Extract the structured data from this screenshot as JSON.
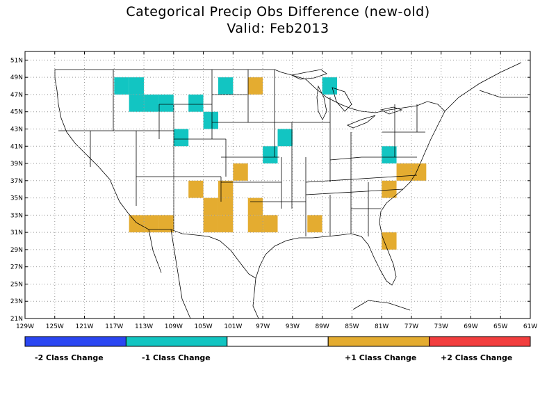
{
  "title": "Categorical Precip Obs Difference (new-old)",
  "subtitle": "Valid: Feb2013",
  "colors": {
    "minus2": "#2a46f2",
    "minus1": "#12c5c2",
    "zero": "#ffffff",
    "plus1": "#e4ac30",
    "plus2": "#f23e3e",
    "state_lines": "#000000",
    "grid": "#9a9a9a"
  },
  "lat_labels": [
    "21N",
    "23N",
    "25N",
    "27N",
    "29N",
    "31N",
    "33N",
    "35N",
    "37N",
    "39N",
    "41N",
    "43N",
    "45N",
    "47N",
    "49N",
    "51N"
  ],
  "lon_labels": [
    "129W",
    "125W",
    "121W",
    "117W",
    "113W",
    "109W",
    "105W",
    "101W",
    "97W",
    "93W",
    "89W",
    "85W",
    "81W",
    "77W",
    "73W",
    "69W",
    "65W",
    "61W"
  ],
  "legend": {
    "labels": [
      "-2 Class Change",
      "-1 Class Change",
      "+1 Class Change",
      "+2 Class Change"
    ]
  },
  "map_data": {
    "lon_range": [
      -129,
      -61
    ],
    "lat_range": [
      21,
      52
    ],
    "cell_deg": 2,
    "cells_minus1": [
      [
        -117,
        47
      ],
      [
        -115,
        47
      ],
      [
        -115,
        45
      ],
      [
        -113,
        45
      ],
      [
        -111,
        45
      ],
      [
        -107,
        45
      ],
      [
        -103,
        47
      ],
      [
        -105,
        43
      ],
      [
        -109,
        41
      ],
      [
        -95,
        41
      ],
      [
        -97,
        39
      ],
      [
        -81,
        39
      ],
      [
        -89,
        47
      ]
    ],
    "cells_plus1": [
      [
        -99,
        47
      ],
      [
        -101,
        37
      ],
      [
        -107,
        35
      ],
      [
        -103,
        35
      ],
      [
        -105,
        33
      ],
      [
        -103,
        33
      ],
      [
        -99,
        33
      ],
      [
        -99,
        31
      ],
      [
        -97,
        31
      ],
      [
        -115,
        31
      ],
      [
        -113,
        31
      ],
      [
        -111,
        31
      ],
      [
        -105,
        31
      ],
      [
        -103,
        31
      ],
      [
        -91,
        31
      ],
      [
        -81,
        35
      ],
      [
        -79,
        37
      ],
      [
        -77,
        37
      ],
      [
        -81,
        29
      ]
    ]
  }
}
